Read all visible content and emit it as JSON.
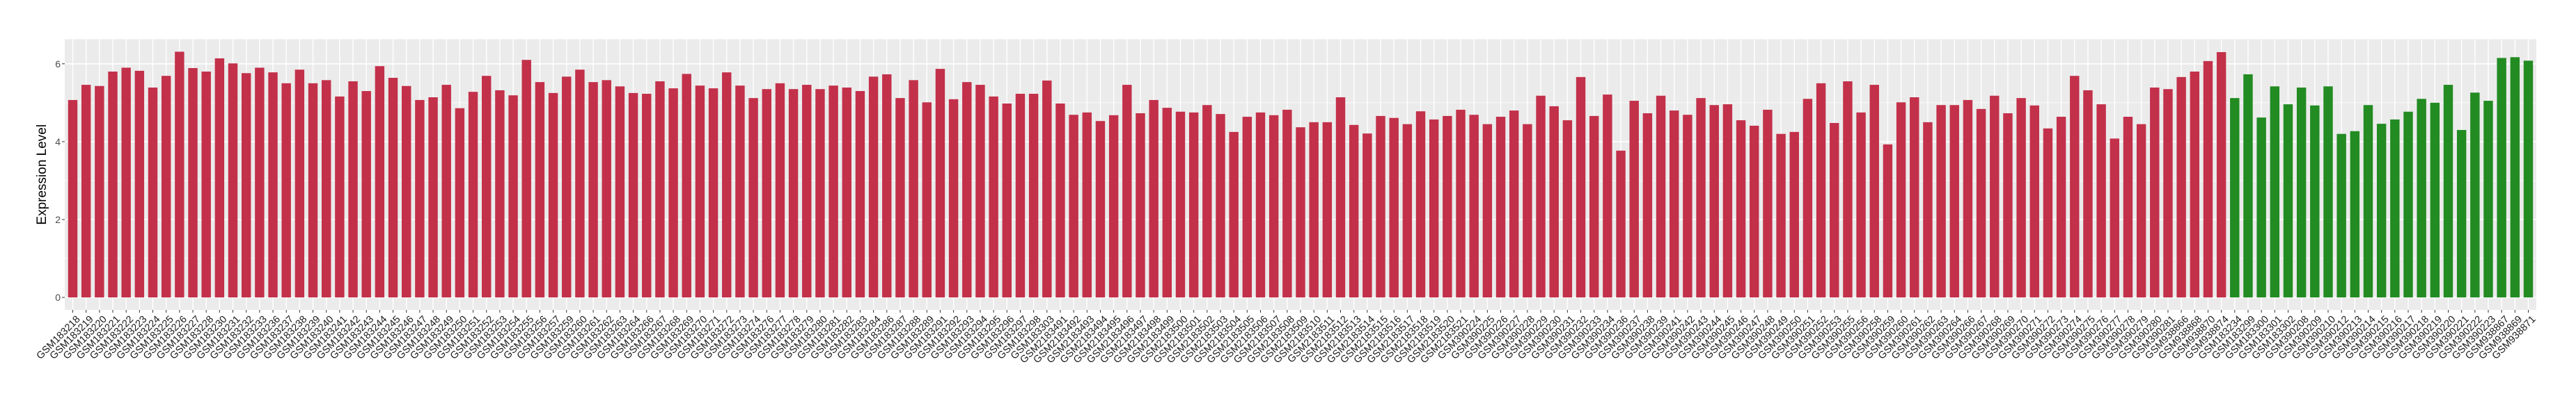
{
  "chart_data": {
    "type": "bar",
    "title": "",
    "xlabel": "",
    "ylabel": "Expression Level",
    "ylim": [
      -0.32,
      6.63
    ],
    "yticks": [
      0,
      2,
      4,
      6
    ],
    "grid": true,
    "legend": "none",
    "colors": {
      "group_1": "#C3304A",
      "group_2": "#228B22",
      "panel": "#EBEBEB",
      "grid": "#FFFFFF"
    },
    "categories": [
      "GSM183218",
      "GSM183219",
      "GSM183220",
      "GSM183221",
      "GSM183222",
      "GSM183223",
      "GSM183224",
      "GSM183225",
      "GSM183226",
      "GSM183227",
      "GSM183228",
      "GSM183230",
      "GSM183231",
      "GSM183232",
      "GSM183233",
      "GSM183236",
      "GSM183237",
      "GSM183238",
      "GSM183239",
      "GSM183240",
      "GSM183241",
      "GSM183242",
      "GSM183243",
      "GSM183244",
      "GSM183245",
      "GSM183246",
      "GSM183247",
      "GSM183248",
      "GSM183249",
      "GSM183250",
      "GSM183251",
      "GSM183252",
      "GSM183253",
      "GSM183254",
      "GSM183255",
      "GSM183256",
      "GSM183257",
      "GSM183259",
      "GSM183260",
      "GSM183261",
      "GSM183262",
      "GSM183263",
      "GSM183264",
      "GSM183266",
      "GSM183267",
      "GSM183268",
      "GSM183269",
      "GSM183270",
      "GSM183271",
      "GSM183272",
      "GSM183273",
      "GSM183274",
      "GSM183276",
      "GSM183277",
      "GSM183278",
      "GSM183279",
      "GSM183280",
      "GSM183281",
      "GSM183282",
      "GSM183283",
      "GSM183284",
      "GSM183286",
      "GSM183287",
      "GSM183288",
      "GSM183289",
      "GSM183291",
      "GSM183292",
      "GSM183293",
      "GSM183294",
      "GSM183295",
      "GSM183296",
      "GSM183297",
      "GSM183298",
      "GSM183303",
      "GSM2183491",
      "GSM2183492",
      "GSM2183493",
      "GSM2183494",
      "GSM2183495",
      "GSM2183496",
      "GSM2183497",
      "GSM2183498",
      "GSM2183499",
      "GSM2183500",
      "GSM2183501",
      "GSM2183502",
      "GSM2183503",
      "GSM2183504",
      "GSM2183505",
      "GSM2183506",
      "GSM2183507",
      "GSM2183508",
      "GSM2183509",
      "GSM2183510",
      "GSM2183511",
      "GSM2183512",
      "GSM2183513",
      "GSM2183514",
      "GSM2183515",
      "GSM2183516",
      "GSM2183517",
      "GSM2183518",
      "GSM2183519",
      "GSM2183520",
      "GSM2183521",
      "GSM390224",
      "GSM390225",
      "GSM390226",
      "GSM390227",
      "GSM390228",
      "GSM390229",
      "GSM390230",
      "GSM390231",
      "GSM390232",
      "GSM390233",
      "GSM390234",
      "GSM390236",
      "GSM390237",
      "GSM390238",
      "GSM390239",
      "GSM390241",
      "GSM390242",
      "GSM390243",
      "GSM390244",
      "GSM390245",
      "GSM390246",
      "GSM390247",
      "GSM390248",
      "GSM390249",
      "GSM390250",
      "GSM390251",
      "GSM390252",
      "GSM390253",
      "GSM390255",
      "GSM390256",
      "GSM390258",
      "GSM390259",
      "GSM390260",
      "GSM390261",
      "GSM390262",
      "GSM390263",
      "GSM390264",
      "GSM390266",
      "GSM390267",
      "GSM390268",
      "GSM390269",
      "GSM390270",
      "GSM390271",
      "GSM390272",
      "GSM390273",
      "GSM390274",
      "GSM390275",
      "GSM390276",
      "GSM390277",
      "GSM390278",
      "GSM390279",
      "GSM390280",
      "GSM390281",
      "GSM938866",
      "GSM938868",
      "GSM938870",
      "GSM938874",
      "GSM183234",
      "GSM183299",
      "GSM183300",
      "GSM183301",
      "GSM183302",
      "GSM390208",
      "GSM390209",
      "GSM390210",
      "GSM390212",
      "GSM390213",
      "GSM390214",
      "GSM390215",
      "GSM390216",
      "GSM390217",
      "GSM390218",
      "GSM390219",
      "GSM390220",
      "GSM390221",
      "GSM390222",
      "GSM390223",
      "GSM938867",
      "GSM938869",
      "GSM938871"
    ],
    "values": [
      5.07,
      5.46,
      5.43,
      5.8,
      5.9,
      5.82,
      5.39,
      5.69,
      6.31,
      5.89,
      5.8,
      6.14,
      6.01,
      5.76,
      5.9,
      5.78,
      5.5,
      5.85,
      5.5,
      5.58,
      5.16,
      5.55,
      5.3,
      5.94,
      5.64,
      5.43,
      5.07,
      5.14,
      5.46,
      4.86,
      5.28,
      5.69,
      5.32,
      5.19,
      6.1,
      5.53,
      5.25,
      5.67,
      5.85,
      5.53,
      5.58,
      5.42,
      5.25,
      5.23,
      5.55,
      5.37,
      5.74,
      5.44,
      5.37,
      5.78,
      5.44,
      5.12,
      5.35,
      5.5,
      5.35,
      5.46,
      5.35,
      5.44,
      5.39,
      5.3,
      5.67,
      5.73,
      5.12,
      5.58,
      5.01,
      5.87,
      5.09,
      5.53,
      5.46,
      5.16,
      4.98,
      5.23,
      5.23,
      5.57,
      4.98,
      4.69,
      4.75,
      4.53,
      4.68,
      5.46,
      4.73,
      5.07,
      4.87,
      4.77,
      4.75,
      4.94,
      4.71,
      4.25,
      4.64,
      4.75,
      4.68,
      4.82,
      4.37,
      4.5,
      4.5,
      5.14,
      4.43,
      4.21,
      4.66,
      4.61,
      4.45,
      4.78,
      4.57,
      4.66,
      4.82,
      4.69,
      4.45,
      4.64,
      4.8,
      4.45,
      5.18,
      4.91,
      4.55,
      5.66,
      4.66,
      5.21,
      3.77,
      5.05,
      4.73,
      5.18,
      4.8,
      4.69,
      5.12,
      4.94,
      4.96,
      4.55,
      4.41,
      4.82,
      4.2,
      4.25,
      5.1,
      5.5,
      4.48,
      5.55,
      4.75,
      5.46,
      3.93,
      5.01,
      5.14,
      4.5,
      4.94,
      4.94,
      5.07,
      4.84,
      5.18,
      4.73,
      5.12,
      4.93,
      4.34,
      4.64,
      5.69,
      5.32,
      4.96,
      4.08,
      4.64,
      4.45,
      5.39,
      5.35,
      5.66,
      5.8,
      6.07,
      6.3,
      5.12,
      5.73,
      4.62,
      5.42,
      4.96,
      5.39,
      4.93,
      5.42,
      4.2,
      4.27,
      4.94,
      4.46,
      4.57,
      4.77,
      5.1,
      5.0,
      5.46,
      4.3,
      5.26,
      5.05,
      6.15,
      6.17,
      6.08
    ],
    "group_1_count": 162
  }
}
